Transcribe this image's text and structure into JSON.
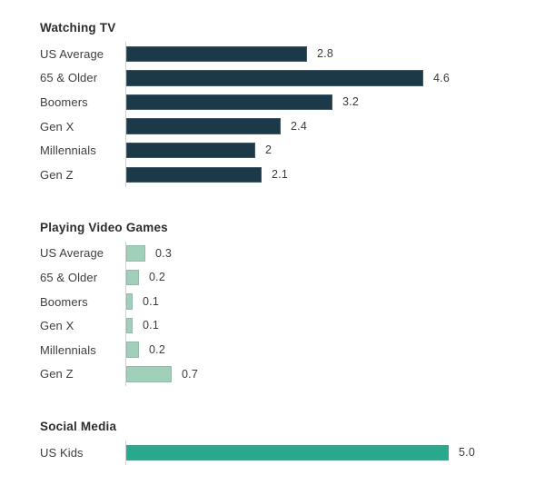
{
  "chart_data": [
    {
      "type": "bar",
      "title": "Watching TV",
      "categories": [
        "US Average",
        "65 & Older",
        "Boomers",
        "Gen X",
        "Millennials",
        "Gen Z"
      ],
      "values": [
        2.8,
        4.6,
        3.2,
        2.4,
        2,
        2.1
      ],
      "value_labels": [
        "2.8",
        "4.6",
        "3.2",
        "2.4",
        "2",
        "2.1"
      ],
      "xlabel": "",
      "ylabel": "",
      "xlim": [
        0,
        5
      ],
      "bar_color": "#1b3948",
      "orientation": "horizontal",
      "grid": false,
      "legend": false
    },
    {
      "type": "bar",
      "title": "Playing Video Games",
      "categories": [
        "US Average",
        "65 & Older",
        "Boomers",
        "Gen X",
        "Millennials",
        "Gen Z"
      ],
      "values": [
        0.3,
        0.2,
        0.1,
        0.1,
        0.2,
        0.7
      ],
      "value_labels": [
        "0.3",
        "0.2",
        "0.1",
        "0.1",
        "0.2",
        "0.7"
      ],
      "xlabel": "",
      "ylabel": "",
      "xlim": [
        0,
        5
      ],
      "bar_color": "#a0cfba",
      "orientation": "horizontal",
      "grid": false,
      "legend": false
    },
    {
      "type": "bar",
      "title": "Social Media",
      "categories": [
        "US Kids"
      ],
      "values": [
        5.0
      ],
      "value_labels": [
        "5.0"
      ],
      "xlabel": "",
      "ylabel": "",
      "xlim": [
        0,
        5
      ],
      "bar_color": "#29a88c",
      "orientation": "horizontal",
      "grid": false,
      "legend": false
    }
  ],
  "colors": {
    "watching_tv_bar": "#1b3948",
    "video_games_bar": "#a0cfba",
    "social_media_bar": "#29a88c",
    "title_text": "#2d2d2d",
    "label_text": "#3e3e3e",
    "axis_line": "#cdd1d2",
    "background": "#ffffff"
  }
}
